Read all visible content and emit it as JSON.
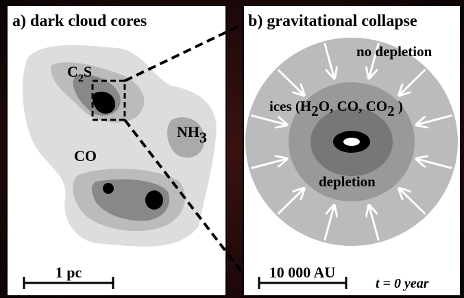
{
  "panel_a": {
    "title": "a) dark cloud cores",
    "c2s": [
      "C",
      "2",
      "S"
    ],
    "nh3": [
      "NH",
      "3"
    ],
    "co": "CO",
    "scale": "1 pc"
  },
  "panel_b": {
    "title": "b) gravitational collapse",
    "no_depletion": "no depletion",
    "ices": [
      "ices (H",
      "2",
      "O, CO, CO",
      "2",
      " )"
    ],
    "depletion": "depletion",
    "scale": "10 000 AU",
    "time": "t = 0  year"
  }
}
